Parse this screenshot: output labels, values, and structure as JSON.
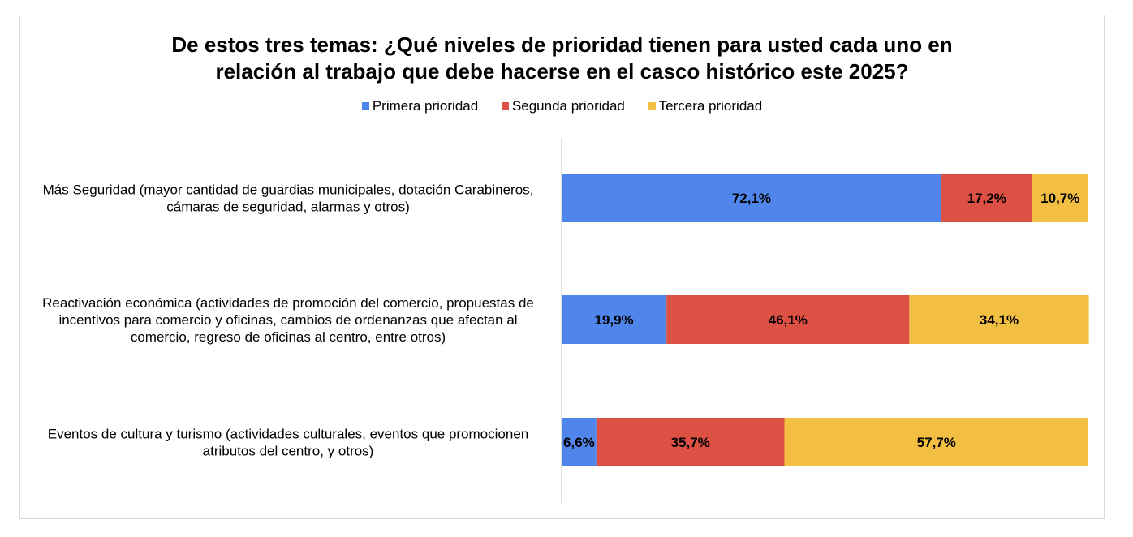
{
  "chart_data": {
    "type": "bar",
    "orientation": "horizontal",
    "stacked": true,
    "title_lines": [
      "De estos tres temas: ¿Qué niveles de prioridad tienen para usted cada uno en",
      "relación al trabajo que debe hacerse en el casco histórico este 2025?"
    ],
    "categories": [
      [
        "Más Seguridad (mayor cantidad de guardias municipales, dotación Carabineros,",
        "cámaras de seguridad, alarmas y otros)"
      ],
      [
        "Reactivación económica (actividades de promoción del comercio, propuestas de",
        "incentivos para comercio y oficinas, cambios de ordenanzas que afectan al",
        "comercio, regreso de oficinas al centro, entre otros)"
      ],
      [
        "Eventos de cultura y turismo (actividades culturales, eventos que promocionen",
        "atributos del centro, y otros)"
      ]
    ],
    "series": [
      {
        "name": "Primera prioridad",
        "color": "#5086EC",
        "values": [
          72.1,
          19.9,
          6.6
        ],
        "labels": [
          "72,1%",
          "19,9%",
          "6,6%"
        ]
      },
      {
        "name": "Segunda prioridad",
        "color": "#DD5044",
        "values": [
          17.2,
          46.1,
          35.7
        ],
        "labels": [
          "17,2%",
          "46,1%",
          "35,7%"
        ]
      },
      {
        "name": "Tercera prioridad",
        "color": "#F2BF42",
        "values": [
          10.7,
          34.1,
          57.7
        ],
        "labels": [
          "10,7%",
          "34,1%",
          "57,7%"
        ]
      }
    ],
    "xlim": [
      0,
      100
    ],
    "grid": false,
    "legend_position": "top"
  }
}
